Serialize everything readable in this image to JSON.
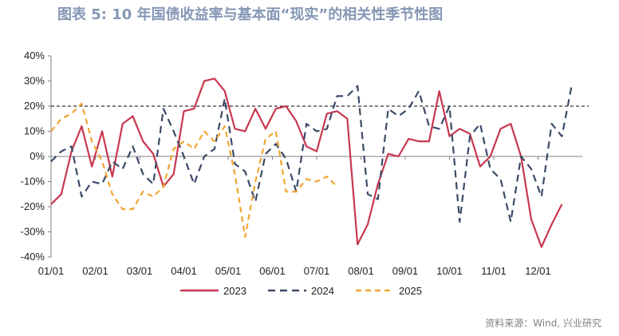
{
  "header": {
    "title": "图表 5:  10 年国债收益率与基本面“现实”的相关性季节性图"
  },
  "footer": {
    "source": "资料来源：Wind, 兴业研究"
  },
  "colors": {
    "title": "#8597b5",
    "s2023": "#c8384f",
    "s2024": "#3b4b67",
    "s2025": "#f0a630",
    "reference": "#000000"
  },
  "chart_data": {
    "type": "line",
    "title": "",
    "xlabel": "",
    "ylabel": "",
    "x_ticks": [
      "01/01",
      "02/01",
      "03/01",
      "04/01",
      "05/01",
      "06/01",
      "07/01",
      "08/01",
      "09/01",
      "10/01",
      "11/01",
      "12/01"
    ],
    "y_ticks": [
      "40%",
      "30%",
      "20%",
      "10%",
      "0%",
      "-10%",
      "-20%",
      "-30%",
      "-40%"
    ],
    "ylim": [
      -0.4,
      0.4
    ],
    "xlim_weeks": [
      0,
      52
    ],
    "grid": false,
    "legend_position": "bottom",
    "reference_line": {
      "y": 0.2,
      "style": "dashed"
    },
    "series": [
      {
        "name": "2023",
        "style": "solid",
        "color": "#c8384f",
        "x": [
          0,
          1,
          2,
          3,
          4,
          5,
          6,
          7,
          8,
          9,
          10,
          11,
          12,
          13,
          14,
          15,
          16,
          17,
          18,
          19,
          20,
          21,
          22,
          23,
          24,
          25,
          26,
          27,
          28,
          29,
          30,
          31,
          32,
          33,
          34,
          35,
          36,
          37,
          38,
          39,
          40,
          41,
          42,
          43,
          44,
          45,
          46,
          47,
          48,
          49,
          50
        ],
        "y": [
          -0.19,
          -0.15,
          0.02,
          0.12,
          -0.04,
          0.1,
          -0.08,
          0.13,
          0.16,
          0.06,
          0.01,
          -0.12,
          -0.07,
          0.18,
          0.19,
          0.3,
          0.31,
          0.26,
          0.11,
          0.1,
          0.19,
          0.11,
          0.19,
          0.2,
          0.14,
          0.04,
          0.02,
          0.17,
          0.18,
          0.15,
          -0.35,
          -0.27,
          -0.11,
          0.01,
          0.0,
          0.07,
          0.06,
          0.06,
          0.26,
          0.08,
          0.11,
          0.09,
          -0.04,
          0.0,
          0.11,
          0.13,
          0.0,
          -0.25,
          -0.36,
          -0.27,
          -0.19
        ]
      },
      {
        "name": "2024",
        "style": "dashed",
        "color": "#3b4b67",
        "x": [
          0,
          1,
          2,
          3,
          4,
          5,
          6,
          7,
          8,
          9,
          10,
          11,
          12,
          13,
          14,
          15,
          16,
          17,
          18,
          19,
          20,
          21,
          22,
          23,
          24,
          25,
          26,
          27,
          28,
          29,
          30,
          31,
          32,
          33,
          34,
          35,
          36,
          37,
          38,
          39,
          40,
          41,
          42,
          43,
          44,
          45,
          46,
          47,
          48,
          49,
          50,
          51
        ],
        "y": [
          -0.02,
          0.02,
          0.04,
          -0.16,
          -0.1,
          -0.11,
          -0.02,
          -0.05,
          0.04,
          -0.07,
          -0.11,
          0.19,
          0.1,
          0.0,
          -0.11,
          0.0,
          0.03,
          0.23,
          -0.03,
          -0.06,
          -0.18,
          0.01,
          0.05,
          -0.01,
          -0.14,
          0.13,
          0.1,
          0.11,
          0.24,
          0.24,
          0.28,
          -0.15,
          -0.17,
          0.19,
          0.16,
          0.19,
          0.26,
          0.12,
          0.11,
          0.2,
          -0.26,
          0.08,
          0.13,
          -0.05,
          -0.09,
          -0.26,
          0.0,
          -0.05,
          -0.16,
          0.13,
          0.08,
          0.29
        ]
      },
      {
        "name": "2025",
        "style": "dashed",
        "color": "#f0a630",
        "x": [
          0,
          1,
          2,
          3,
          4,
          5,
          6,
          7,
          8,
          9,
          10,
          11,
          12,
          13,
          14,
          15,
          16,
          17,
          18,
          19,
          20,
          21,
          22,
          23,
          24,
          25,
          26,
          27,
          28,
          29,
          30
        ],
        "y": [
          0.1,
          0.15,
          0.17,
          0.21,
          0.06,
          -0.02,
          -0.15,
          -0.21,
          -0.21,
          -0.14,
          -0.16,
          -0.12,
          0.03,
          0.06,
          0.03,
          0.1,
          0.06,
          0.12,
          -0.07,
          -0.32,
          -0.1,
          0.07,
          0.1,
          -0.14,
          -0.14,
          -0.09,
          -0.1,
          -0.08,
          -0.12,
          null,
          null
        ]
      }
    ]
  }
}
